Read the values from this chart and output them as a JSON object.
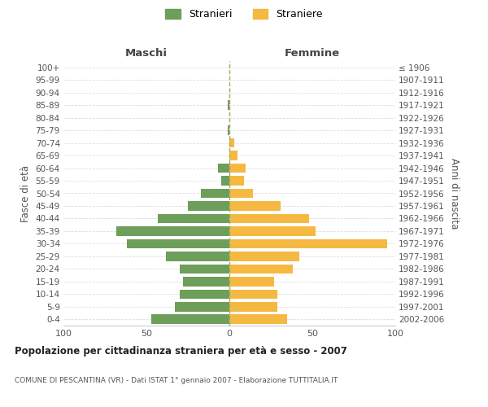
{
  "age_groups": [
    "0-4",
    "5-9",
    "10-14",
    "15-19",
    "20-24",
    "25-29",
    "30-34",
    "35-39",
    "40-44",
    "45-49",
    "50-54",
    "55-59",
    "60-64",
    "65-69",
    "70-74",
    "75-79",
    "80-84",
    "85-89",
    "90-94",
    "95-99",
    "100+"
  ],
  "birth_years": [
    "2002-2006",
    "1997-2001",
    "1992-1996",
    "1987-1991",
    "1982-1986",
    "1977-1981",
    "1972-1976",
    "1967-1971",
    "1962-1966",
    "1957-1961",
    "1952-1956",
    "1947-1951",
    "1942-1946",
    "1937-1941",
    "1932-1936",
    "1927-1931",
    "1922-1926",
    "1917-1921",
    "1912-1916",
    "1907-1911",
    "≤ 1906"
  ],
  "maschi": [
    47,
    33,
    30,
    28,
    30,
    38,
    62,
    68,
    43,
    25,
    17,
    5,
    7,
    0,
    0,
    1,
    0,
    1,
    0,
    0,
    0
  ],
  "femmine": [
    35,
    29,
    29,
    27,
    38,
    42,
    95,
    52,
    48,
    31,
    14,
    9,
    10,
    5,
    3,
    0,
    0,
    0,
    0,
    0,
    0
  ],
  "maschi_color": "#6d9e5a",
  "femmine_color": "#f5b942",
  "title": "Popolazione per cittadinanza straniera per età e sesso - 2007",
  "subtitle": "COMUNE DI PESCANTINA (VR) - Dati ISTAT 1° gennaio 2007 - Elaborazione TUTTITALIA.IT",
  "xlabel_left": "Maschi",
  "xlabel_right": "Femmine",
  "ylabel_left": "Fasce di età",
  "ylabel_right": "Anni di nascita",
  "legend_stranieri": "Stranieri",
  "legend_straniere": "Straniere",
  "xlim": 100,
  "background_color": "#ffffff",
  "grid_color": "#dddddd"
}
